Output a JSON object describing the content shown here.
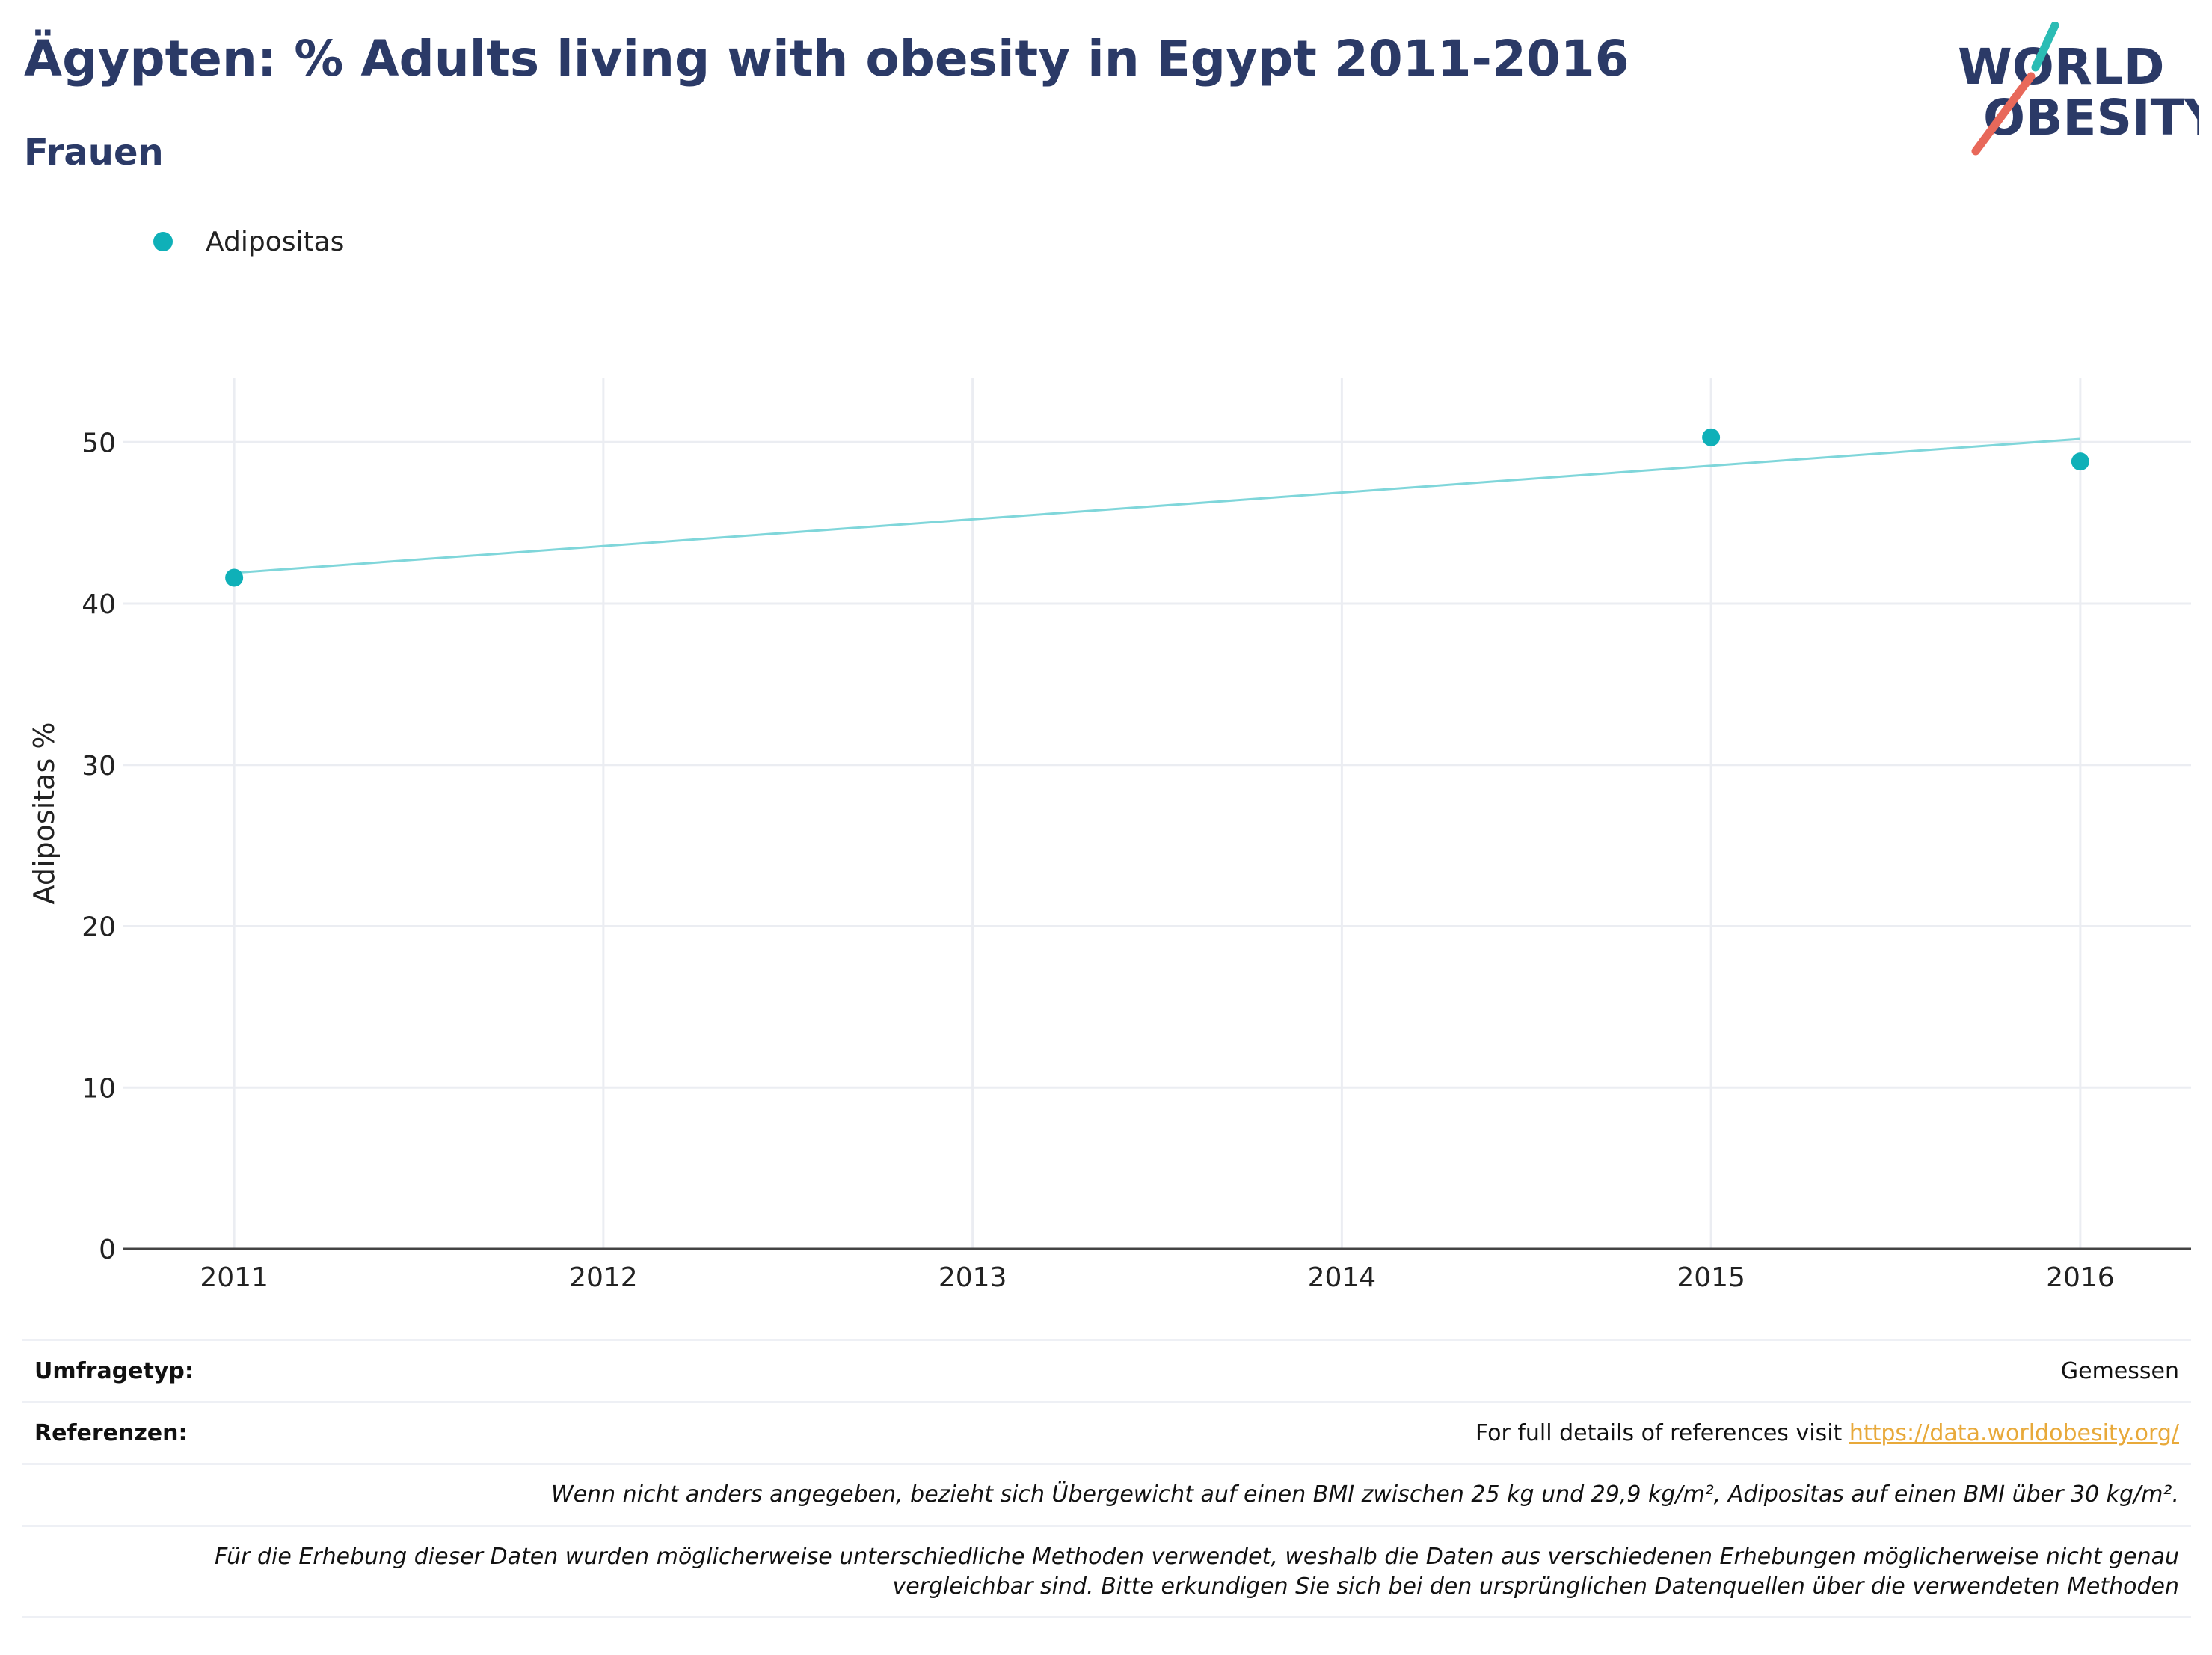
{
  "header": {
    "title": "Ägypten: % Adults living with obesity in Egypt 2011-2016",
    "subtitle": "Frauen"
  },
  "logo": {
    "line1": "WORLD",
    "line2": "OBESITY",
    "accent_teal": "#2bbcb4",
    "accent_red": "#e8685a"
  },
  "chart_data": {
    "type": "scatter",
    "title": "Ägypten: % Adults living with obesity in Egypt 2011-2016",
    "subtitle": "Frauen",
    "xlabel": "",
    "ylabel": "Adipositas %",
    "x_ticks": [
      "2011",
      "2012",
      "2013",
      "2014",
      "2015",
      "2016"
    ],
    "y_ticks": [
      "0",
      "10",
      "20",
      "30",
      "40",
      "50"
    ],
    "xlim": [
      2010.7,
      2016.3
    ],
    "ylim": [
      0,
      54
    ],
    "grid": true,
    "legend_position": "top-left",
    "series": [
      {
        "name": "Adipositas",
        "color": "#0fb0b8",
        "x": [
          2011,
          2015,
          2016
        ],
        "y": [
          41.6,
          50.3,
          48.8
        ]
      }
    ],
    "trendline": {
      "color": "#7fd6da",
      "x": [
        2011,
        2016
      ],
      "y": [
        41.9,
        50.2
      ]
    }
  },
  "footer": {
    "survey_type_label": "Umfragetyp:",
    "survey_type_value": "Gemessen",
    "references_label": "Referenzen:",
    "references_text": "For full details of references visit ",
    "references_link": "https://data.worldobesity.org/",
    "note1": "Wenn nicht anders angegeben, bezieht sich Übergewicht auf einen BMI zwischen 25 kg und 29,9 kg/m², Adipositas auf einen BMI über 30 kg/m².",
    "note2_line1": "Für die Erhebung dieser Daten wurden möglicherweise unterschiedliche Methoden verwendet, weshalb die Daten aus verschiedenen Erhebungen möglicherweise nicht genau",
    "note2_line2": "vergleichbar sind. Bitte erkundigen Sie sich bei den ursprünglichen Datenquellen über die verwendeten Methoden"
  }
}
